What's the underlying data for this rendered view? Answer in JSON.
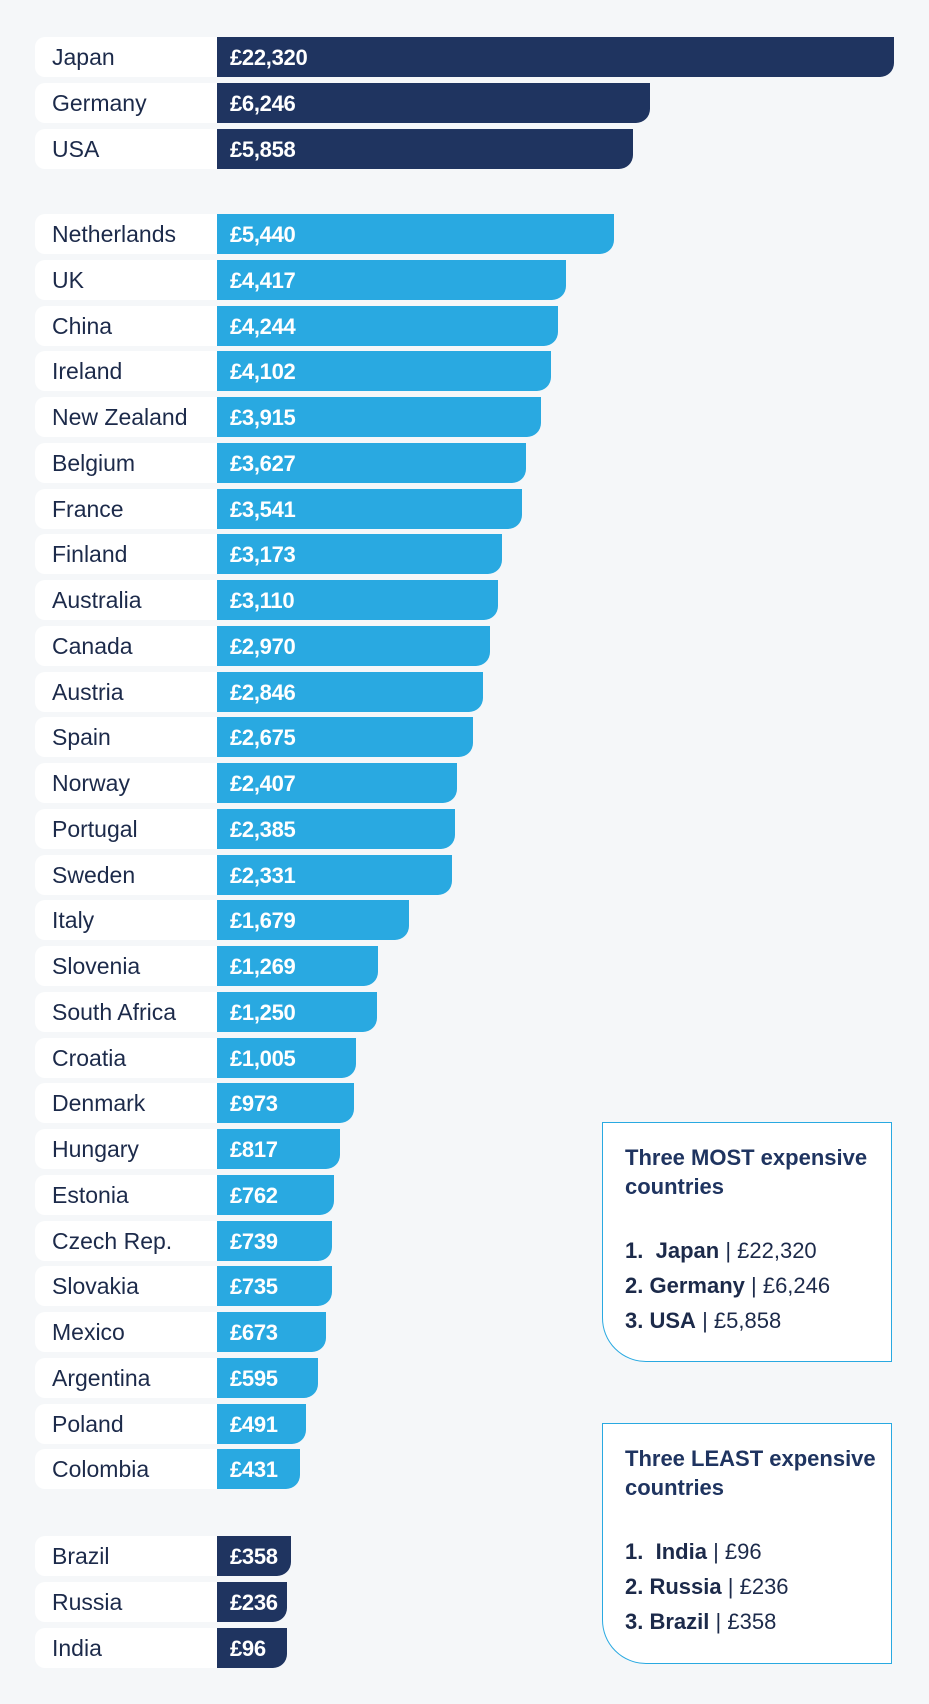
{
  "colors": {
    "dark": "#1f3460",
    "light": "#29a9e1",
    "label_bg": "#ffffff",
    "page_bg": "#f5f7f9"
  },
  "chart_data": {
    "type": "bar",
    "orientation": "horizontal",
    "title": "",
    "xlabel": "",
    "ylabel": "",
    "value_prefix": "£",
    "xlim": [
      0,
      22320
    ],
    "grid": false,
    "groups": [
      {
        "color": "dark",
        "items": [
          {
            "country": "Japan",
            "value": 22320,
            "label": "£22,320"
          },
          {
            "country": "Germany",
            "value": 6246,
            "label": "£6,246"
          },
          {
            "country": "USA",
            "value": 5858,
            "label": "£5,858"
          }
        ]
      },
      {
        "color": "light",
        "items": [
          {
            "country": "Netherlands",
            "value": 5440,
            "label": "£5,440"
          },
          {
            "country": "UK",
            "value": 4417,
            "label": "£4,417"
          },
          {
            "country": "China",
            "value": 4244,
            "label": "£4,244"
          },
          {
            "country": "Ireland",
            "value": 4102,
            "label": "£4,102"
          },
          {
            "country": "New Zealand",
            "value": 3915,
            "label": "£3,915"
          },
          {
            "country": "Belgium",
            "value": 3627,
            "label": "£3,627"
          },
          {
            "country": "France",
            "value": 3541,
            "label": "£3,541"
          },
          {
            "country": "Finland",
            "value": 3173,
            "label": "£3,173"
          },
          {
            "country": "Australia",
            "value": 3110,
            "label": "£3,110"
          },
          {
            "country": "Canada",
            "value": 2970,
            "label": "£2,970"
          },
          {
            "country": "Austria",
            "value": 2846,
            "label": "£2,846"
          },
          {
            "country": "Spain",
            "value": 2675,
            "label": "£2,675"
          },
          {
            "country": "Norway",
            "value": 2407,
            "label": "£2,407"
          },
          {
            "country": "Portugal",
            "value": 2385,
            "label": "£2,385"
          },
          {
            "country": "Sweden",
            "value": 2331,
            "label": "£2,331"
          },
          {
            "country": "Italy",
            "value": 1679,
            "label": "£1,679"
          },
          {
            "country": "Slovenia",
            "value": 1269,
            "label": "£1,269"
          },
          {
            "country": "South Africa",
            "value": 1250,
            "label": "£1,250"
          },
          {
            "country": "Croatia",
            "value": 1005,
            "label": "£1,005"
          },
          {
            "country": "Denmark",
            "value": 973,
            "label": "£973"
          },
          {
            "country": "Hungary",
            "value": 817,
            "label": "£817"
          },
          {
            "country": "Estonia",
            "value": 762,
            "label": "£762"
          },
          {
            "country": "Czech Rep.",
            "value": 739,
            "label": "£739"
          },
          {
            "country": "Slovakia",
            "value": 735,
            "label": "£735"
          },
          {
            "country": "Mexico",
            "value": 673,
            "label": "£673"
          },
          {
            "country": "Argentina",
            "value": 595,
            "label": "£595"
          },
          {
            "country": "Poland",
            "value": 491,
            "label": "£491"
          },
          {
            "country": "Colombia",
            "value": 431,
            "label": "£431"
          }
        ]
      },
      {
        "color": "dark",
        "items": [
          {
            "country": "Brazil",
            "value": 358,
            "label": "£358"
          },
          {
            "country": "Russia",
            "value": 236,
            "label": "£236"
          },
          {
            "country": "India",
            "value": 96,
            "label": "£96"
          }
        ]
      }
    ]
  },
  "summary_most": {
    "title": "Three MOST expensive countries",
    "items": [
      {
        "rank": "1.",
        "country": "Japan",
        "value": "| £22,320"
      },
      {
        "rank": "2.",
        "country": "Germany",
        "value": "| £6,246"
      },
      {
        "rank": "3.",
        "country": "USA",
        "value": "| £5,858"
      }
    ]
  },
  "summary_least": {
    "title": "Three LEAST expensive countries",
    "items": [
      {
        "rank": "1.",
        "country": "India",
        "value": "| £96"
      },
      {
        "rank": "2.",
        "country": "Russia",
        "value": "| £236"
      },
      {
        "rank": "3.",
        "country": "Brazil",
        "value": "| £358"
      }
    ]
  }
}
